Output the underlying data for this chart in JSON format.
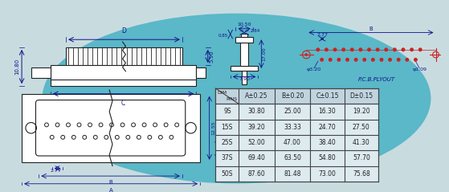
{
  "bg_color": "#c8dce0",
  "ellipse_color": "#5ab8c8",
  "table_rows": [
    [
      "9S",
      "30.80",
      "25.00",
      "16.30",
      "19.20"
    ],
    [
      "15S",
      "39.20",
      "33.33",
      "24.70",
      "27.50"
    ],
    [
      "25S",
      "52.00",
      "47.00",
      "38.40",
      "41.30"
    ],
    [
      "37S",
      "69.40",
      "63.50",
      "54.80",
      "57.70"
    ],
    [
      "50S",
      "87.60",
      "81.48",
      "73.00",
      "75.68"
    ]
  ],
  "line_color": "#222222",
  "dim_color": "#111188",
  "red_color": "#cc2222",
  "table_bg": "#ddeaf0",
  "table_border": "#444444",
  "pcb_label": "P.C.B.PLYOUT"
}
